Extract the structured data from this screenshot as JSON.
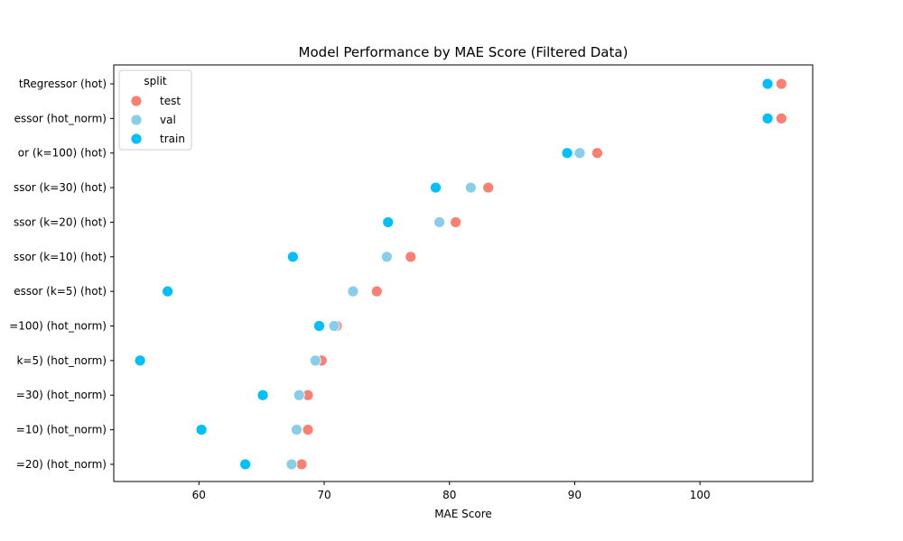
{
  "chart_data": {
    "type": "scatter",
    "title": "Model Performance by MAE Score (Filtered Data)",
    "xlabel": "MAE Score",
    "ylabel": "",
    "xlim": [
      53.2,
      109.0
    ],
    "xticks": [
      60,
      70,
      80,
      90,
      100
    ],
    "grid": false,
    "legend": {
      "title": "split",
      "placement": "top-left"
    },
    "categories": [
      "tRegressor (hot)",
      "essor (hot_norm)",
      "or (k=100) (hot)",
      "ssor (k=30) (hot)",
      "ssor (k=20) (hot)",
      "ssor (k=10) (hot)",
      "essor (k=5) (hot)",
      "=100) (hot_norm)",
      "k=5) (hot_norm)",
      "=30) (hot_norm)",
      "=10) (hot_norm)",
      "=20) (hot_norm)"
    ],
    "series": [
      {
        "name": "test",
        "color": "#fa8072",
        "values": [
          106.5,
          106.5,
          91.8,
          83.1,
          80.5,
          76.9,
          74.2,
          71.0,
          69.8,
          68.7,
          68.7,
          68.2
        ]
      },
      {
        "name": "val",
        "color": "#87ceeb",
        "values": [
          105.4,
          105.4,
          90.4,
          81.7,
          79.2,
          75.0,
          72.3,
          70.8,
          69.3,
          68.0,
          67.8,
          67.4
        ]
      },
      {
        "name": "train",
        "color": "#00bfff",
        "values": [
          105.4,
          105.4,
          89.4,
          78.9,
          75.1,
          67.5,
          57.5,
          69.6,
          55.3,
          65.1,
          60.2,
          63.7
        ]
      }
    ]
  }
}
